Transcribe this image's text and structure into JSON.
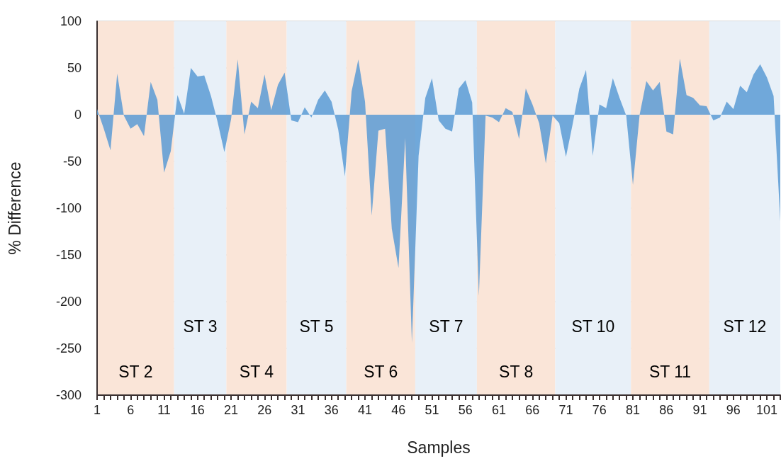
{
  "chart_data": {
    "type": "area",
    "xlabel": "Samples",
    "ylabel": "% Difference",
    "x": [
      1,
      2,
      3,
      4,
      5,
      6,
      7,
      8,
      9,
      10,
      11,
      12,
      13,
      14,
      15,
      16,
      17,
      18,
      19,
      20,
      21,
      22,
      23,
      24,
      25,
      26,
      27,
      28,
      29,
      30,
      31,
      32,
      33,
      34,
      35,
      36,
      37,
      38,
      39,
      40,
      41,
      42,
      43,
      44,
      45,
      46,
      47,
      48,
      49,
      50,
      51,
      52,
      53,
      54,
      55,
      56,
      57,
      58,
      59,
      60,
      61,
      62,
      63,
      64,
      65,
      66,
      67,
      68,
      69,
      70,
      71,
      72,
      73,
      74,
      75,
      76,
      77,
      78,
      79,
      80,
      81,
      82,
      83,
      84,
      85,
      86,
      87,
      88,
      89,
      90,
      91,
      92,
      93,
      94,
      95,
      96,
      97,
      98,
      99,
      100,
      101,
      102,
      103
    ],
    "series": [
      {
        "color": "#5b9bd5",
        "values": [
          6,
          -15,
          -38,
          44,
          -1,
          -15,
          -10,
          -23,
          35,
          16,
          -62,
          -39,
          21,
          1,
          50,
          41,
          42,
          20,
          -8,
          -40,
          -5,
          59,
          -21,
          14,
          7,
          43,
          5,
          32,
          45,
          -6,
          -8,
          8,
          -3,
          16,
          26,
          14,
          -16,
          -66,
          25,
          59,
          14,
          -108,
          -17,
          -15,
          -122,
          -164,
          -25,
          -244,
          -44,
          18,
          39,
          -6,
          -15,
          -18,
          28,
          37,
          13,
          -194,
          -1,
          -3,
          -8,
          7,
          3,
          -26,
          28,
          11,
          -9,
          -52,
          -1,
          -9,
          -45,
          -10,
          28,
          48,
          -44,
          11,
          7,
          39,
          18,
          -1,
          -75,
          0,
          36,
          26,
          35,
          -18,
          -21,
          60,
          21,
          18,
          10,
          9,
          -6,
          -3,
          14,
          6,
          31,
          24,
          43,
          54,
          40,
          20,
          -114
        ]
      }
    ],
    "xlim": [
      1,
      103
    ],
    "xticks": [
      1,
      {
        "value": 2,
        "label": null
      },
      {
        "value": 3,
        "label": null
      },
      {
        "value": 4,
        "label": null
      },
      {
        "value": 5,
        "label": null
      },
      6,
      {
        "value": 7,
        "label": null
      },
      {
        "value": 8,
        "label": null
      },
      {
        "value": 9,
        "label": null
      },
      {
        "value": 10,
        "label": null
      },
      11,
      {
        "value": 12,
        "label": null
      },
      {
        "value": 13,
        "label": null
      },
      {
        "value": 14,
        "label": null
      },
      {
        "value": 15,
        "label": null
      },
      16,
      {
        "value": 17,
        "label": null
      },
      {
        "value": 18,
        "label": null
      },
      {
        "value": 19,
        "label": null
      },
      {
        "value": 20,
        "label": null
      },
      21,
      {
        "value": 22,
        "label": null
      },
      {
        "value": 23,
        "label": null
      },
      {
        "value": 24,
        "label": null
      },
      {
        "value": 25,
        "label": null
      },
      26,
      {
        "value": 27,
        "label": null
      },
      {
        "value": 28,
        "label": null
      },
      {
        "value": 29,
        "label": null
      },
      {
        "value": 30,
        "label": null
      },
      31,
      {
        "value": 32,
        "label": null
      },
      {
        "value": 33,
        "label": null
      },
      {
        "value": 34,
        "label": null
      },
      {
        "value": 35,
        "label": null
      },
      36,
      {
        "value": 37,
        "label": null
      },
      {
        "value": 38,
        "label": null
      },
      {
        "value": 39,
        "label": null
      },
      {
        "value": 40,
        "label": null
      },
      41,
      {
        "value": 42,
        "label": null
      },
      {
        "value": 43,
        "label": null
      },
      {
        "value": 44,
        "label": null
      },
      {
        "value": 45,
        "label": null
      },
      46,
      {
        "value": 47,
        "label": null
      },
      {
        "value": 48,
        "label": null
      },
      {
        "value": 49,
        "label": null
      },
      {
        "value": 50,
        "label": null
      },
      51,
      {
        "value": 52,
        "label": null
      },
      {
        "value": 53,
        "label": null
      },
      {
        "value": 54,
        "label": null
      },
      {
        "value": 55,
        "label": null
      },
      56,
      {
        "value": 57,
        "label": null
      },
      {
        "value": 58,
        "label": null
      },
      {
        "value": 59,
        "label": null
      },
      {
        "value": 60,
        "label": null
      },
      61,
      {
        "value": 62,
        "label": null
      },
      {
        "value": 63,
        "label": null
      },
      {
        "value": 64,
        "label": null
      },
      {
        "value": 65,
        "label": null
      },
      66,
      {
        "value": 67,
        "label": null
      },
      {
        "value": 68,
        "label": null
      },
      {
        "value": 69,
        "label": null
      },
      {
        "value": 70,
        "label": null
      },
      71,
      {
        "value": 72,
        "label": null
      },
      {
        "value": 73,
        "label": null
      },
      {
        "value": 74,
        "label": null
      },
      {
        "value": 75,
        "label": null
      },
      76,
      {
        "value": 77,
        "label": null
      },
      {
        "value": 78,
        "label": null
      },
      {
        "value": 79,
        "label": null
      },
      {
        "value": 80,
        "label": null
      },
      81,
      {
        "value": 82,
        "label": null
      },
      {
        "value": 83,
        "label": null
      },
      {
        "value": 84,
        "label": null
      },
      {
        "value": 85,
        "label": null
      },
      86,
      {
        "value": 87,
        "label": null
      },
      {
        "value": 88,
        "label": null
      },
      {
        "value": 89,
        "label": null
      },
      {
        "value": 90,
        "label": null
      },
      91,
      {
        "value": 92,
        "label": null
      },
      {
        "value": 93,
        "label": null
      },
      {
        "value": 94,
        "label": null
      },
      {
        "value": 95,
        "label": null
      },
      96,
      {
        "value": 97,
        "label": null
      },
      {
        "value": 98,
        "label": null
      },
      {
        "value": 99,
        "label": null
      },
      {
        "value": 100,
        "label": null
      },
      101,
      {
        "value": 102,
        "label": null
      },
      {
        "value": 103,
        "label": null
      }
    ],
    "ylim": [
      -300,
      100
    ],
    "yticks": [
      -300,
      -250,
      -200,
      -150,
      -100,
      -50,
      0,
      50,
      100
    ],
    "bands": [
      {
        "axis": "x",
        "from": 1,
        "to": 12.5,
        "label": "ST 2",
        "color": "#fae5d8"
      },
      {
        "axis": "x",
        "from": 12.5,
        "to": 20.3,
        "label": "ST 3",
        "color": "#e8f0f8"
      },
      {
        "axis": "x",
        "from": 20.3,
        "to": 29.3,
        "label": "ST 4",
        "color": "#fae5d8"
      },
      {
        "axis": "x",
        "from": 29.3,
        "to": 38.2,
        "label": "ST 5",
        "color": "#e8f0f8"
      },
      {
        "axis": "x",
        "from": 38.2,
        "to": 48.5,
        "label": "ST 6",
        "color": "#fae5d8"
      },
      {
        "axis": "x",
        "from": 48.5,
        "to": 57.7,
        "label": "ST 7",
        "color": "#e8f0f8"
      },
      {
        "axis": "x",
        "from": 57.7,
        "to": 69.4,
        "label": "ST 8",
        "color": "#fae5d8"
      },
      {
        "axis": "x",
        "from": 69.4,
        "to": 80.7,
        "label": "ST 10",
        "color": "#e8f0f8"
      },
      {
        "axis": "x",
        "from": 80.7,
        "to": 92.4,
        "label": "ST 11",
        "color": "#fae5d8"
      },
      {
        "axis": "x",
        "from": 92.4,
        "to": 103,
        "label": "ST 12",
        "color": "#e8f0f8"
      }
    ],
    "grid": "y",
    "marker": "none"
  }
}
